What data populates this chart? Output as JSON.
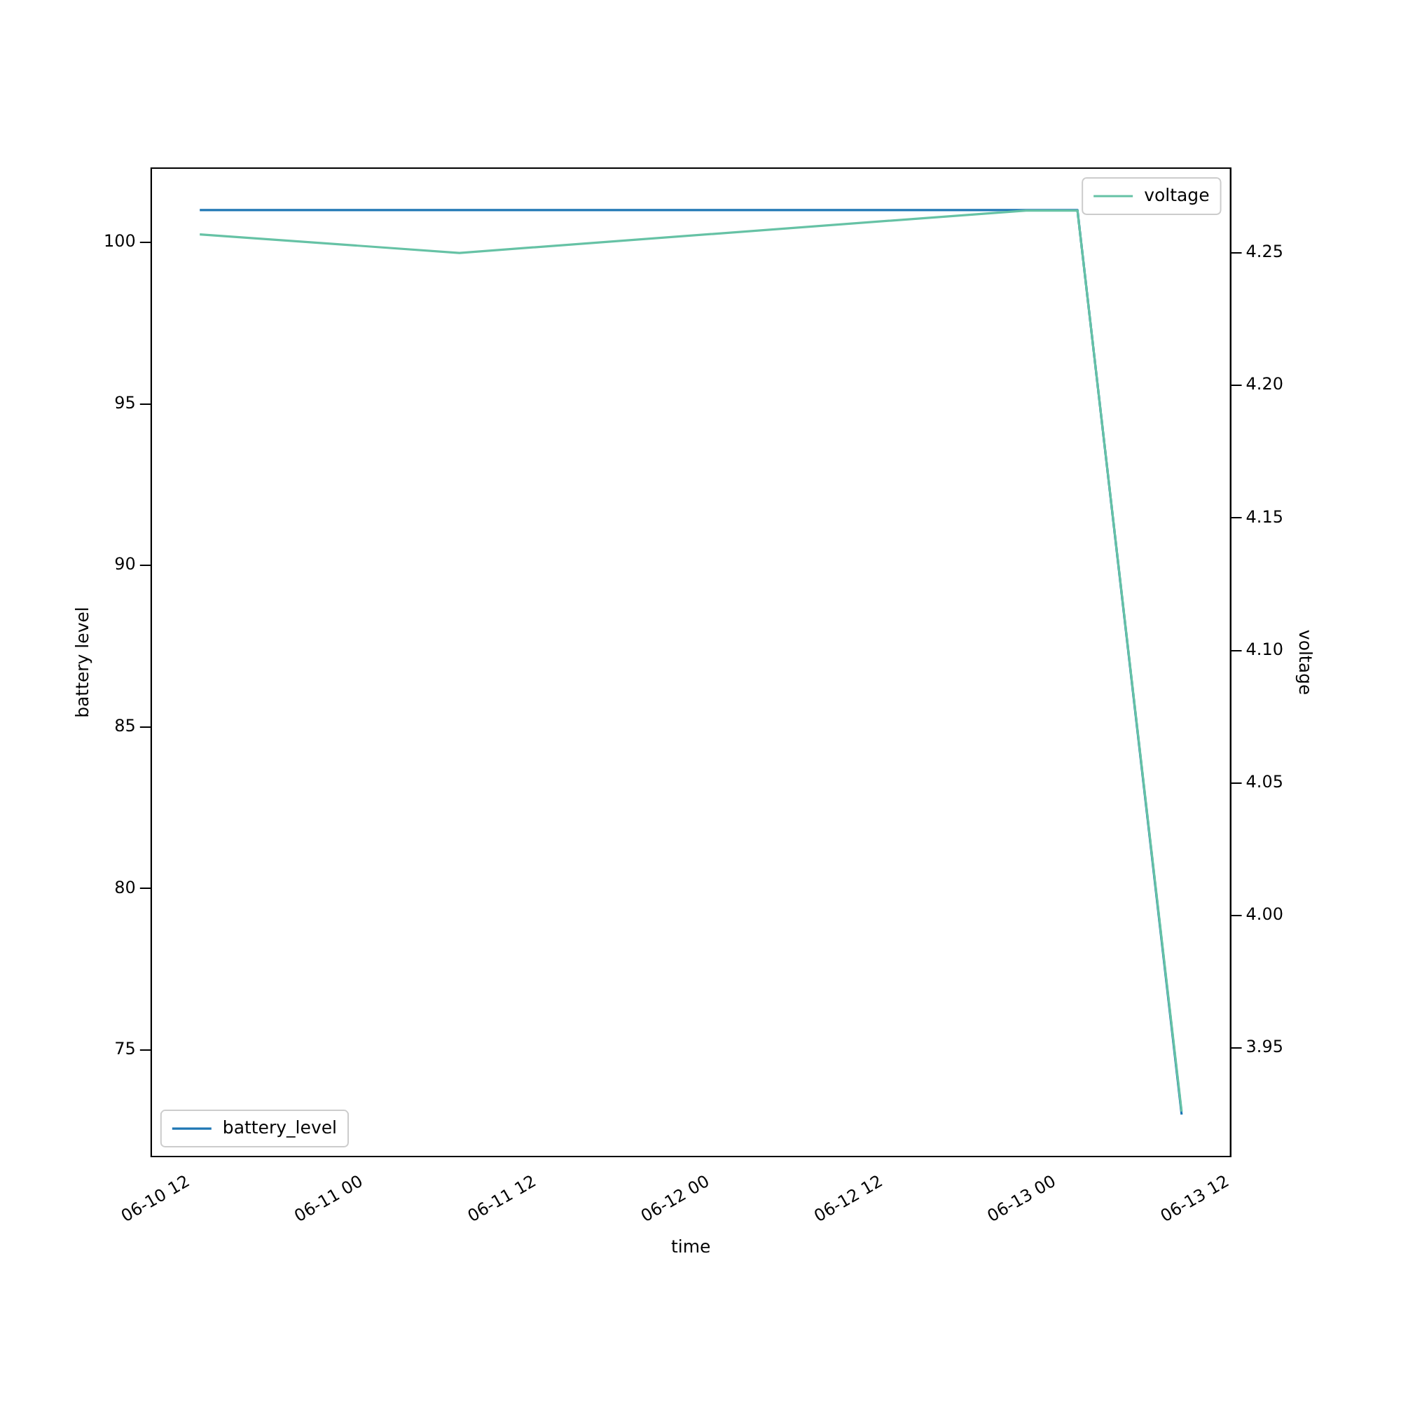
{
  "chart_data": {
    "type": "line",
    "xlabel": "time",
    "ylabel": "battery level",
    "y2label": "voltage",
    "xlim": [
      "--06-10T09:24",
      "--06-13T12:10"
    ],
    "xticks": [
      {
        "value": "--06-10T12:00",
        "label": "06-10 12"
      },
      {
        "value": "--06-11T00:00",
        "label": "06-11 00"
      },
      {
        "value": "--06-11T12:00",
        "label": "06-11 12"
      },
      {
        "value": "--06-12T00:00",
        "label": "06-12 00"
      },
      {
        "value": "--06-12T12:00",
        "label": "06-12 12"
      },
      {
        "value": "--06-13T00:00",
        "label": "06-13 00"
      },
      {
        "value": "--06-13T12:00",
        "label": "06-13 12"
      }
    ],
    "ylim": [
      71.7,
      102.3
    ],
    "yticks": [
      75,
      80,
      85,
      90,
      95,
      100
    ],
    "y2lim": [
      3.909,
      4.282
    ],
    "y2ticks": [
      3.95,
      {
        "value": 4.0,
        "label": "4.00"
      },
      4.05,
      {
        "value": 4.1,
        "label": "4.10"
      },
      4.15,
      {
        "value": 4.2,
        "label": "4.20"
      },
      4.25
    ],
    "legend": [
      "bottom left",
      "top right"
    ],
    "grid": false,
    "series": [
      {
        "name": "battery_level",
        "color": "#1f77b4",
        "x": [
          "--06-10T12:46",
          "--06-13T01:34",
          "--06-13T08:47"
        ],
        "values": [
          101,
          101,
          73
        ]
      },
      {
        "name": "voltage",
        "color": "#66c2a5",
        "axis": "y2",
        "x": [
          "--06-10T12:46",
          "--06-11T06:45",
          "--06-12T22:00",
          "--06-13T01:34",
          "--06-13T08:47"
        ],
        "values": [
          4.257,
          4.25,
          4.266,
          4.266,
          3.926
        ]
      }
    ]
  }
}
